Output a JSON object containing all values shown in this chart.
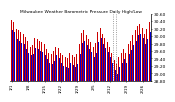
{
  "title": "Milwaukee Weather Barometric Pressure Daily High/Low",
  "highs": [
    30.42,
    30.38,
    30.18,
    30.15,
    30.1,
    30.05,
    29.98,
    29.88,
    29.72,
    29.75,
    29.95,
    29.92,
    29.88,
    29.85,
    29.78,
    29.65,
    29.55,
    29.52,
    29.6,
    29.72,
    29.68,
    29.55,
    29.48,
    29.45,
    29.42,
    29.55,
    29.5,
    29.45,
    29.52,
    29.78,
    30.08,
    30.15,
    30.02,
    29.92,
    29.85,
    29.72,
    29.82,
    30.12,
    30.22,
    30.05,
    29.95,
    29.85,
    29.72,
    29.55,
    29.35,
    29.25,
    29.45,
    29.55,
    29.65,
    29.55,
    29.78,
    29.88,
    30.02,
    30.15,
    30.28,
    30.32,
    30.22,
    30.05,
    30.18,
    30.38
  ],
  "lows": [
    30.15,
    30.1,
    29.92,
    29.88,
    29.82,
    29.78,
    29.65,
    29.55,
    29.48,
    29.52,
    29.68,
    29.65,
    29.6,
    29.58,
    29.48,
    29.38,
    29.28,
    29.25,
    29.32,
    29.48,
    29.42,
    29.28,
    29.2,
    29.18,
    29.15,
    29.28,
    29.22,
    29.18,
    29.25,
    29.52,
    29.82,
    29.88,
    29.75,
    29.65,
    29.58,
    29.45,
    29.55,
    29.85,
    29.95,
    29.78,
    29.68,
    29.58,
    29.45,
    29.28,
    29.1,
    28.98,
    29.18,
    29.28,
    29.38,
    29.28,
    29.52,
    29.62,
    29.75,
    29.88,
    30.02,
    30.05,
    29.95,
    29.78,
    29.92,
    30.12
  ],
  "high_color": "#cc0000",
  "low_color": "#0000cc",
  "background_color": "#ffffff",
  "ylim_min": 28.8,
  "ylim_max": 30.6,
  "bar_width": 0.45,
  "dashed_line_x": 43.5,
  "ytick_min": 28.8,
  "ytick_max": 30.6,
  "ytick_step": 0.2
}
